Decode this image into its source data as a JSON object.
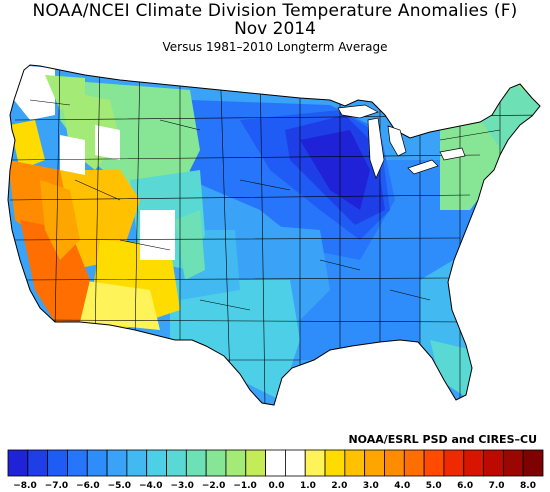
{
  "title": "NOAA/NCEI Climate Division Temperature Anomalies (F)",
  "subtitle": "Nov 2014",
  "baseline": "Versus 1981–2010 Longterm Average",
  "credit": "NOAA/ESRL PSD and CIRES–CU",
  "unit": "F",
  "colorbar": {
    "ticks": [
      "−8.0",
      "−7.0",
      "−6.0",
      "−5.0",
      "−4.0",
      "−3.0",
      "−2.0",
      "−1.0",
      "0.0",
      "1.0",
      "2.0",
      "3.0",
      "4.0",
      "5.0",
      "6.0",
      "7.0",
      "8.0"
    ],
    "colors": [
      "#1f22d6",
      "#1e3ee8",
      "#1f5bf5",
      "#2775fb",
      "#2f8cfb",
      "#3aa3f7",
      "#43b9f1",
      "#4dcfe8",
      "#5ad8d4",
      "#6ee0b6",
      "#86e695",
      "#a3ea76",
      "#c3ec58",
      "#ffffff",
      "#ffffff",
      "#fff35a",
      "#ffdc00",
      "#ffc100",
      "#ffa500",
      "#ff8c00",
      "#ff6e00",
      "#ff4a00",
      "#f02a00",
      "#d81500",
      "#bc0a00",
      "#9c0600",
      "#7e0300"
    ]
  },
  "regions": [
    {
      "name": "pacific-northwest",
      "anomaly": -0.5
    },
    {
      "name": "california",
      "anomaly": 3.5
    },
    {
      "name": "great-basin",
      "anomaly": 2.5
    },
    {
      "name": "southwest",
      "anomaly": 1.5
    },
    {
      "name": "northern-rockies",
      "anomaly": -2.5
    },
    {
      "name": "northern-plains",
      "anomaly": -6.5
    },
    {
      "name": "upper-midwest",
      "anomaly": -8.0
    },
    {
      "name": "ohio-valley",
      "anomaly": -6.5
    },
    {
      "name": "central-plains",
      "anomaly": -5.0
    },
    {
      "name": "texas",
      "anomaly": -4.0
    },
    {
      "name": "southeast",
      "anomaly": -4.5
    },
    {
      "name": "florida",
      "anomaly": -3.0
    },
    {
      "name": "northeast",
      "anomaly": -2.0
    }
  ]
}
